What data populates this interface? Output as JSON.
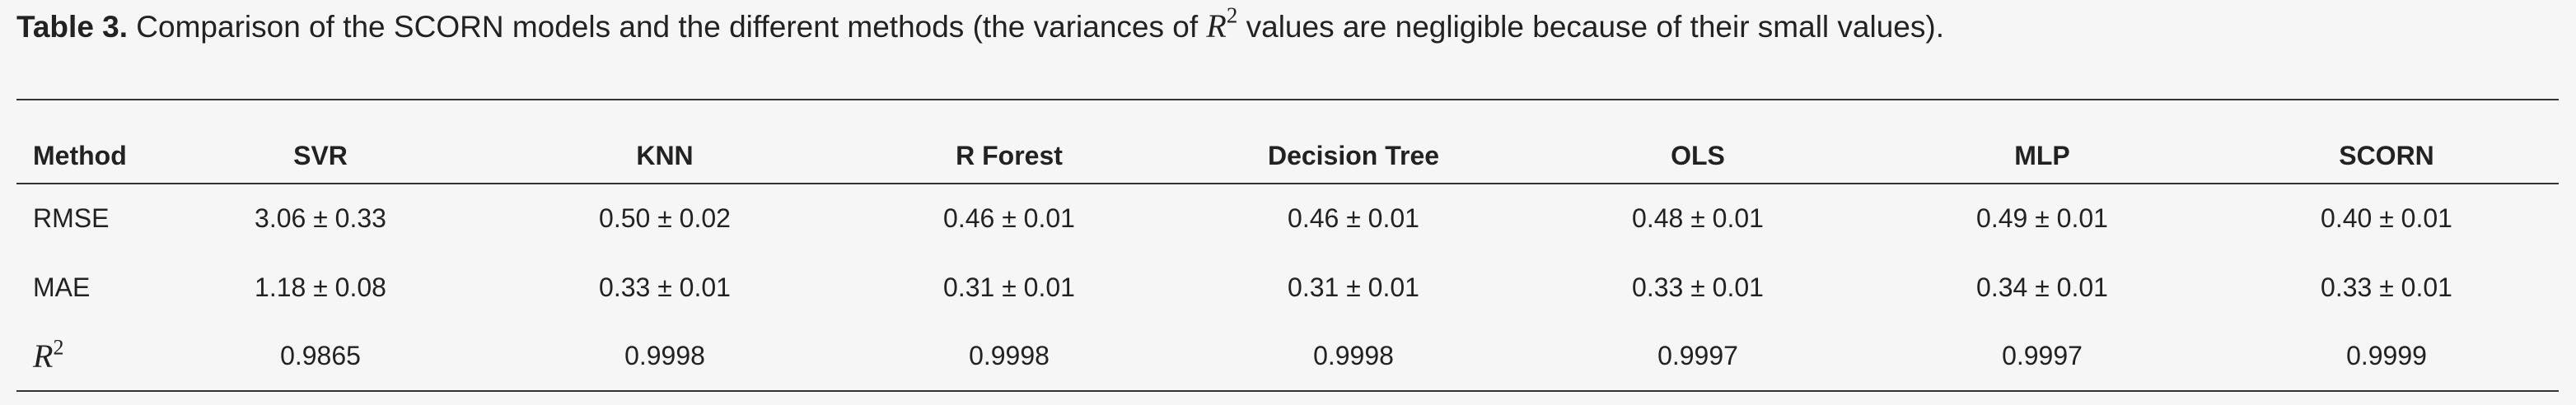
{
  "caption": {
    "label": "Table 3.",
    "text_before": " Comparison of the SCORN models and the different methods (the variances of ",
    "math_base": "R",
    "math_sup": "2",
    "text_after": " values are negligible because of their small values)."
  },
  "table": {
    "headers": [
      "Method",
      "SVR",
      "KNN",
      "R Forest",
      "Decision Tree",
      "OLS",
      "MLP",
      "SCORN"
    ],
    "rows": [
      {
        "label": "RMSE",
        "values": [
          "3.06 ± 0.33",
          "0.50 ± 0.02",
          "0.46 ± 0.01",
          "0.46 ± 0.01",
          "0.48 ± 0.01",
          "0.49 ± 0.01",
          "0.40 ± 0.01"
        ]
      },
      {
        "label": "MAE",
        "values": [
          "1.18 ± 0.08",
          "0.33 ± 0.01",
          "0.31 ± 0.01",
          "0.31 ± 0.01",
          "0.33 ± 0.01",
          "0.34 ± 0.01",
          "0.33 ± 0.01"
        ]
      },
      {
        "label_base": "R",
        "label_sup": "2",
        "values": [
          "0.9865",
          "0.9998",
          "0.9998",
          "0.9998",
          "0.9997",
          "0.9997",
          "0.9999"
        ]
      }
    ]
  }
}
